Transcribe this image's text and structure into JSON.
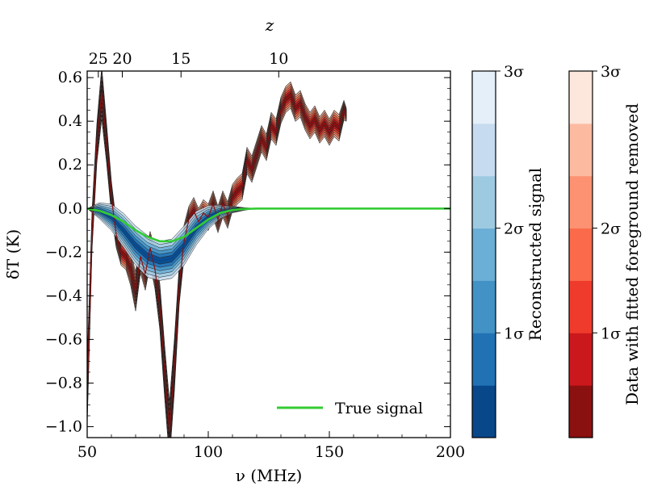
{
  "chart_data": {
    "type": "line",
    "xlabel": "ν (MHz)",
    "ylabel": "δT (K)",
    "top_xlabel": "z",
    "xlim": [
      50,
      200
    ],
    "ylim": [
      -1.05,
      0.63
    ],
    "xticks": [
      50,
      100,
      150,
      200
    ],
    "xtick_labels": [
      "50",
      "100",
      "150",
      "200"
    ],
    "yticks": [
      -1.0,
      -0.8,
      -0.6,
      -0.4,
      -0.2,
      0.0,
      0.2,
      0.4,
      0.6
    ],
    "ytick_labels": [
      "−1.0",
      "−0.8",
      "−0.6",
      "−0.4",
      "−0.2",
      "0.0",
      "0.2",
      "0.4",
      "0.6"
    ],
    "top_ticks_freq": [
      54.6,
      64.5,
      88.75,
      129.1
    ],
    "top_tick_labels": [
      "25",
      "20",
      "15",
      "10"
    ],
    "grid": false,
    "legend_position": "lower-right",
    "legend": [
      "True signal"
    ],
    "true_signal": {
      "name": "True signal",
      "color": "#33cc33",
      "x": [
        50,
        55,
        60,
        65,
        70,
        75,
        80,
        85,
        90,
        95,
        100,
        105,
        110,
        115,
        120,
        125,
        130,
        140,
        150,
        160,
        180,
        200
      ],
      "y": [
        0.0,
        -0.01,
        -0.03,
        -0.06,
        -0.1,
        -0.13,
        -0.15,
        -0.15,
        -0.13,
        -0.09,
        -0.05,
        -0.02,
        -0.007,
        -0.002,
        0.0,
        0.0,
        0.0,
        0.0,
        0.0,
        0.0,
        0.0,
        0.0
      ]
    },
    "reconstructed_signal": {
      "name": "Reconstructed signal",
      "x": [
        50,
        55,
        60,
        65,
        70,
        75,
        80,
        85,
        90,
        95,
        100,
        105,
        110,
        115,
        120
      ],
      "median": [
        0.0,
        -0.01,
        -0.04,
        -0.1,
        -0.17,
        -0.22,
        -0.24,
        -0.23,
        -0.17,
        -0.09,
        -0.04,
        -0.015,
        -0.005,
        -0.002,
        0.0
      ],
      "sigma_band_widths": [
        0.0,
        0.012,
        0.02,
        0.026,
        0.03,
        0.032,
        0.03,
        0.03,
        0.03,
        0.026,
        0.018,
        0.01,
        0.005,
        0.002,
        0.0
      ]
    },
    "data_foreground_removed": {
      "name": "Data with fitted foreground removed",
      "x": [
        50,
        52,
        54,
        56,
        58,
        60,
        62,
        64,
        66,
        68,
        70,
        72,
        74,
        76,
        78,
        80,
        82,
        84,
        86,
        88,
        90,
        92,
        94,
        96,
        98,
        100,
        102,
        104,
        106,
        108,
        110,
        112,
        114,
        116,
        118,
        120,
        122,
        124,
        126,
        128,
        130,
        132,
        134,
        136,
        138,
        140,
        142,
        144,
        146,
        148,
        150,
        152,
        154,
        156,
        157
      ],
      "y": [
        -0.85,
        -0.1,
        0.3,
        0.53,
        0.3,
        0.05,
        -0.12,
        -0.2,
        -0.22,
        -0.28,
        -0.38,
        -0.22,
        -0.3,
        -0.18,
        -0.28,
        -0.45,
        -0.75,
        -1.02,
        -0.72,
        -0.35,
        -0.15,
        -0.05,
        -0.01,
        -0.06,
        -0.02,
        -0.04,
        0.02,
        -0.05,
        0.02,
        -0.03,
        0.05,
        0.08,
        0.1,
        0.22,
        0.18,
        0.25,
        0.32,
        0.28,
        0.38,
        0.35,
        0.45,
        0.5,
        0.52,
        0.46,
        0.48,
        0.42,
        0.38,
        0.41,
        0.36,
        0.39,
        0.35,
        0.39,
        0.37,
        0.45,
        0.43
      ],
      "sigma_band_widths": [
        0.05,
        0.03,
        0.03,
        0.04,
        0.03,
        0.025,
        0.02,
        0.02,
        0.02,
        0.025,
        0.03,
        0.025,
        0.025,
        0.025,
        0.03,
        0.035,
        0.04,
        0.045,
        0.04,
        0.03,
        0.025,
        0.02,
        0.02,
        0.02,
        0.02,
        0.02,
        0.02,
        0.02,
        0.02,
        0.02,
        0.02,
        0.02,
        0.02,
        0.02,
        0.02,
        0.02,
        0.02,
        0.02,
        0.02,
        0.02,
        0.02,
        0.02,
        0.02,
        0.02,
        0.02,
        0.02,
        0.02,
        0.02,
        0.02,
        0.02,
        0.02,
        0.02,
        0.02,
        0.015,
        0.01
      ]
    },
    "colorbars": [
      {
        "label": "Reconstructed signal",
        "tick_labels": [
          "1σ",
          "2σ",
          "3σ"
        ],
        "colors": [
          "#08478a",
          "#2171b5",
          "#4292c6",
          "#6baed6",
          "#9ecae1",
          "#c6dbef",
          "#e5eff9"
        ]
      },
      {
        "label": "Data with fitted foreground removed",
        "tick_labels": [
          "1σ",
          "2σ",
          "3σ"
        ],
        "colors": [
          "#8b1010",
          "#cb181d",
          "#ef3b2c",
          "#fb6a4a",
          "#fc9272",
          "#fcbba1",
          "#fde6dc"
        ]
      }
    ]
  }
}
